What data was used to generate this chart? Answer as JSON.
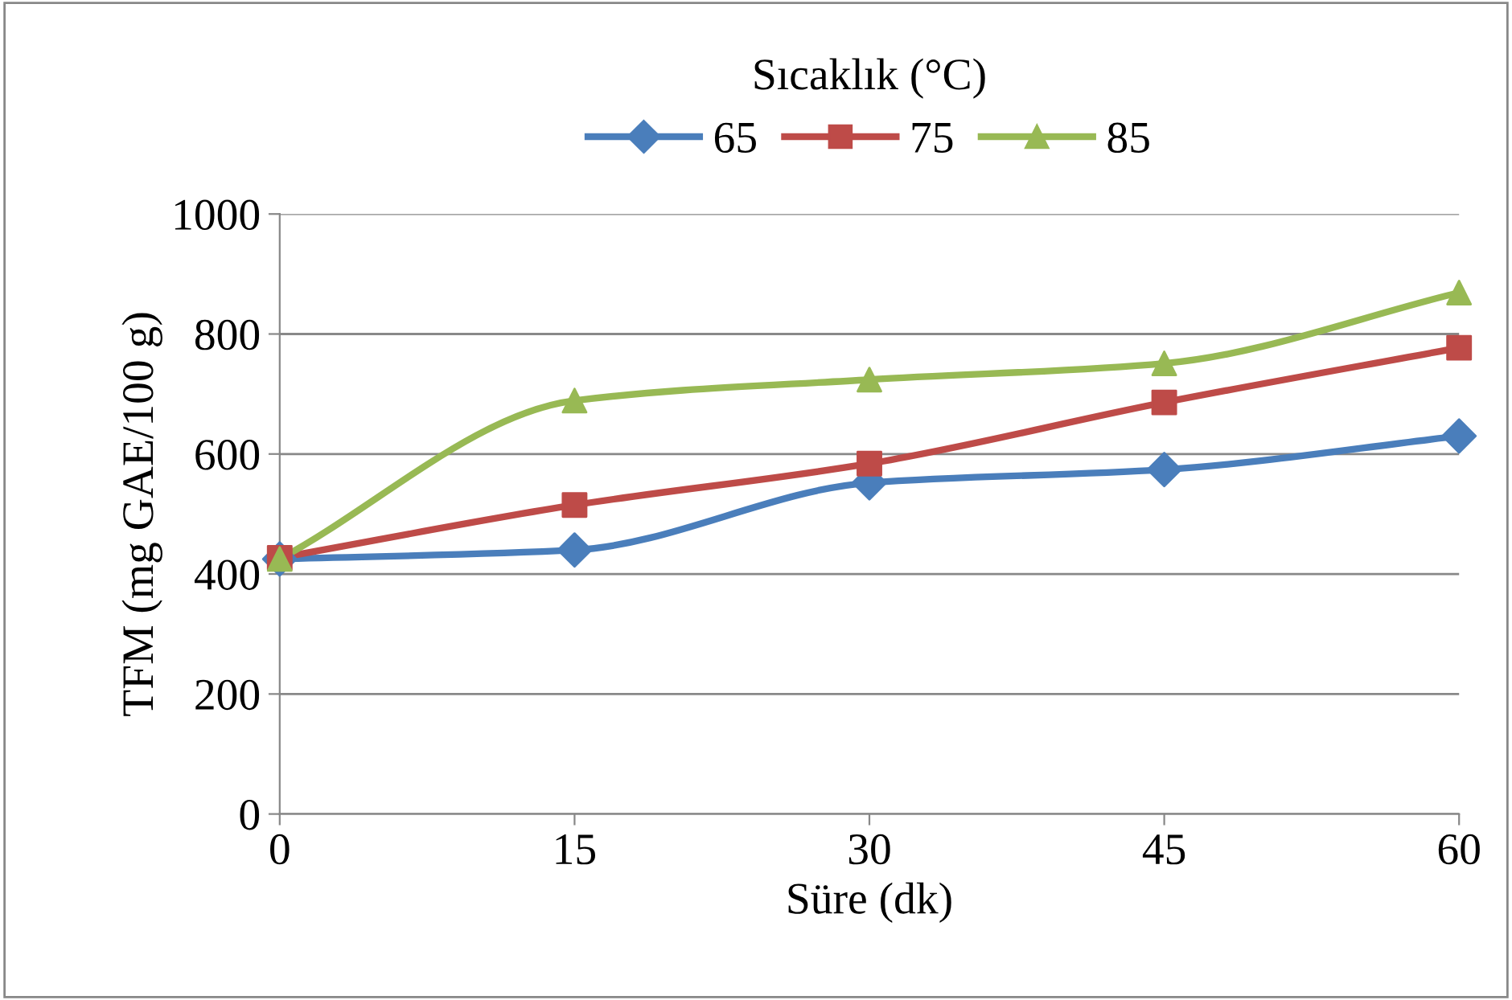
{
  "chart_data": {
    "type": "line",
    "xlabel": "Süre (dk)",
    "ylabel": "TFM (mg GAE/100 g)",
    "legend_title": "Sıcaklık (°C)",
    "legend": "top",
    "x": [
      0,
      15,
      30,
      45,
      60
    ],
    "series": [
      {
        "name": "65",
        "color": "#4a7ebb",
        "marker": "diamond",
        "values": [
          425,
          440,
          552,
          574,
          630
        ]
      },
      {
        "name": "75",
        "color": "#be4b48",
        "marker": "square",
        "values": [
          427,
          515,
          584,
          686,
          777
        ]
      },
      {
        "name": "85",
        "color": "#98b954",
        "marker": "triangle",
        "values": [
          425,
          689,
          724,
          751,
          869
        ]
      }
    ],
    "xlim": [
      0,
      60
    ],
    "xticks": [
      0,
      15,
      30,
      45,
      60
    ],
    "ylim": [
      0,
      1000
    ],
    "yticks": [
      0,
      200,
      400,
      600,
      800,
      1000
    ],
    "grid": "y"
  }
}
